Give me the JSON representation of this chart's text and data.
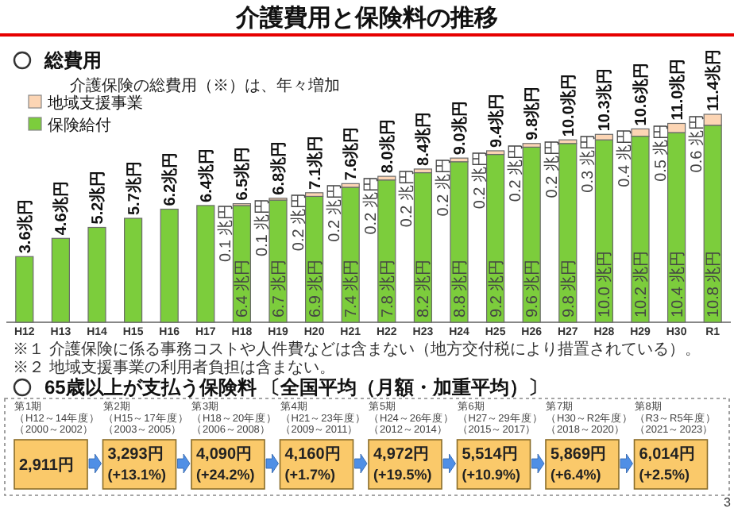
{
  "chart_data": [
    {
      "type": "bar",
      "stacked": true,
      "title": "介護費用と保険料の推移",
      "subtitle": "総費用",
      "legend": "top left",
      "annotations": [
        "介護保険の総費用（※）は、年々増加",
        "※１ 介護保険に係る事務コストや人件費などは含まない（地方交付税により措置されている）。",
        "※２ 地域支援事業の利用者負担は含まない。"
      ],
      "categories": [
        "H12",
        "H13",
        "H14",
        "H15",
        "H16",
        "H17",
        "H18",
        "H19",
        "H20",
        "H21",
        "H22",
        "H23",
        "H24",
        "H25",
        "H26",
        "H27",
        "H28",
        "H29",
        "H30",
        "R1"
      ],
      "series": [
        {
          "name": "保険給付",
          "color": "#7ccd3c",
          "values": [
            3.6,
            4.6,
            5.2,
            5.7,
            6.2,
            6.4,
            6.4,
            6.7,
            6.9,
            7.4,
            7.8,
            8.2,
            8.8,
            9.2,
            9.6,
            9.8,
            10.0,
            10.2,
            10.4,
            10.8
          ],
          "value_labels": [
            null,
            null,
            null,
            null,
            null,
            null,
            "6.4 兆円",
            "6.7 兆円",
            "6.9 兆円",
            "7.4 兆円",
            "7.8 兆円",
            "8.2 兆円",
            "8.8 兆円",
            "9.2 兆円",
            "9.6 兆円",
            "9.8 兆円",
            "10.0 兆円",
            "10.2 兆円",
            "10.4 兆円",
            "10.8 兆円"
          ]
        },
        {
          "name": "地域支援事業",
          "color": "#fcd5b4",
          "values": [
            null,
            null,
            null,
            null,
            null,
            null,
            0.1,
            0.1,
            0.2,
            0.2,
            0.2,
            0.2,
            0.2,
            0.2,
            0.2,
            0.2,
            0.3,
            0.4,
            0.5,
            0.6
          ],
          "value_labels": [
            null,
            null,
            null,
            null,
            null,
            null,
            "0.1 兆円",
            "0.1 兆円",
            "0.2 兆円",
            "0.2 兆円",
            "0.2 兆円",
            "0.2 兆円",
            "0.2 兆円",
            "0.2 兆円",
            "0.2 兆円",
            "0.2 兆円",
            "0.3 兆円",
            "0.4 兆円",
            "0.5 兆円",
            "0.6 兆円"
          ]
        }
      ],
      "totals": [
        "3.6兆円",
        "4.6兆円",
        "5.2兆円",
        "5.7兆円",
        "6.2兆円",
        "6.4兆円",
        "6.5兆円",
        "6.8兆円",
        "7.1兆円",
        "7.6兆円",
        "8.0兆円",
        "8.4兆円",
        "9.0兆円",
        "9.4兆円",
        "9.8兆円",
        "10.0兆円",
        "10.3兆円",
        "10.6兆円",
        "11.0兆円",
        "11.4兆円"
      ]
    },
    {
      "type": "other",
      "title": "65歳以上が支払う保険料 〔全国平均（月額・加重平均）〕",
      "annotations": [
        "3"
      ],
      "categories": [
        "第1期（H12～14年度）（2000～2002）",
        "第2期（H15～17年度）（2003～2005）",
        "第3期（H18～20年度）（2006～2008）",
        "第4期（H21～23年度）（2009～2011）",
        "第5期（H24～26年度）（2012～2014）",
        "第6期（H27～29年度）（2015～2017）",
        "第7期（H30～R2年度）（2018～2020）",
        "第8期（R3～R5年度）（2021～2023）"
      ],
      "value_labels": [
        "2,911円",
        "3,293円\n(+13.1%)",
        "4,090円\n(+24.2%)",
        "4,160円\n(+1.7%)",
        "4,972円\n(+19.5%)",
        "5,514円\n(+10.9%)",
        "5,869円\n(+6.4%)",
        "6,014円\n(+2.5%)"
      ]
    }
  ]
}
